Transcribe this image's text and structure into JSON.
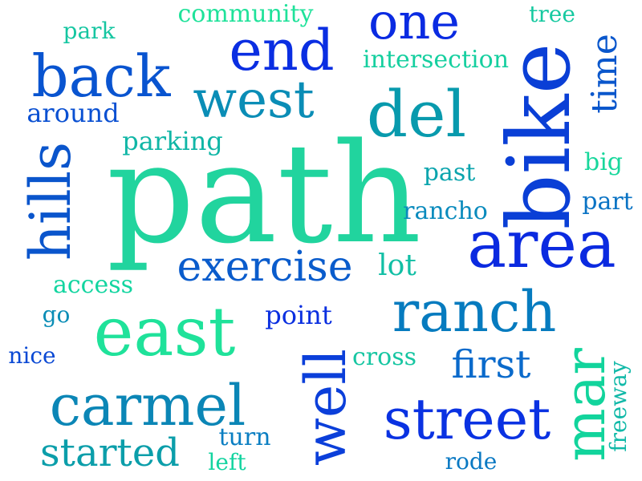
{
  "words": [
    {
      "text": "path",
      "color": "#21d49e"
    },
    {
      "text": "bike",
      "color": "#0a3fd6"
    },
    {
      "text": "area",
      "color": "#0b2ae0"
    },
    {
      "text": "east",
      "color": "#1fe29a"
    },
    {
      "text": "ranch",
      "color": "#067bbf"
    },
    {
      "text": "street",
      "color": "#0a32e2"
    },
    {
      "text": "carmel",
      "color": "#0b86b6"
    },
    {
      "text": "well",
      "color": "#0b3fda"
    },
    {
      "text": "mar",
      "color": "#12d49c"
    },
    {
      "text": "del",
      "color": "#089aad"
    },
    {
      "text": "end",
      "color": "#0a2ee2"
    },
    {
      "text": "back",
      "color": "#0954d0"
    },
    {
      "text": "west",
      "color": "#0a8db6"
    },
    {
      "text": "one",
      "color": "#0a2be2"
    },
    {
      "text": "hills",
      "color": "#0a55cc"
    },
    {
      "text": "exercise",
      "color": "#0a5ccc"
    },
    {
      "text": "first",
      "color": "#0a6acb"
    },
    {
      "text": "started",
      "color": "#0b9eaa"
    },
    {
      "text": "time",
      "color": "#0a57cc"
    },
    {
      "text": "community",
      "color": "#1fe29a"
    },
    {
      "text": "intersection",
      "color": "#15cf9f"
    },
    {
      "text": "parking",
      "color": "#10b6a6"
    },
    {
      "text": "around",
      "color": "#0a50d2"
    },
    {
      "text": "park",
      "color": "#15c6a1"
    },
    {
      "text": "tree",
      "color": "#16c9a0"
    },
    {
      "text": "big",
      "color": "#19d79c"
    },
    {
      "text": "past",
      "color": "#0aa4ad"
    },
    {
      "text": "part",
      "color": "#0a73c4"
    },
    {
      "text": "rancho",
      "color": "#0a8bbd"
    },
    {
      "text": "lot",
      "color": "#12bfa5"
    },
    {
      "text": "access",
      "color": "#12d5a0"
    },
    {
      "text": "go",
      "color": "#0a8db6"
    },
    {
      "text": "point",
      "color": "#0a2fe0"
    },
    {
      "text": "nice",
      "color": "#0a49d4"
    },
    {
      "text": "cross",
      "color": "#16c6a2"
    },
    {
      "text": "turn",
      "color": "#0a7ec2"
    },
    {
      "text": "left",
      "color": "#13d4a0"
    },
    {
      "text": "rode",
      "color": "#0a79c3"
    },
    {
      "text": "freeway",
      "color": "#11b9a8"
    }
  ]
}
